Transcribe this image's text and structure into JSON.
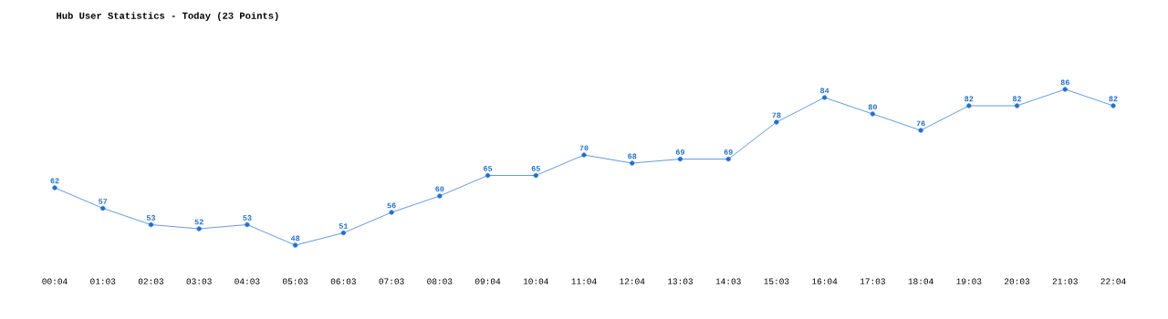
{
  "chart_data": {
    "type": "line",
    "title": "Hub User Statistics - Today (23 Points)",
    "categories": [
      "00:04",
      "01:03",
      "02:03",
      "03:03",
      "04:03",
      "05:03",
      "06:03",
      "07:03",
      "08:03",
      "09:04",
      "10:04",
      "11:04",
      "12:04",
      "13:03",
      "14:03",
      "15:03",
      "16:04",
      "17:03",
      "18:04",
      "19:03",
      "20:03",
      "21:03",
      "22:04"
    ],
    "values": [
      62,
      57,
      53,
      52,
      53,
      48,
      51,
      56,
      60,
      65,
      65,
      70,
      68,
      69,
      69,
      78,
      84,
      80,
      76,
      82,
      82,
      86,
      82
    ],
    "color": "#1f6fd6",
    "marker": "circle",
    "data_labels": true
  }
}
